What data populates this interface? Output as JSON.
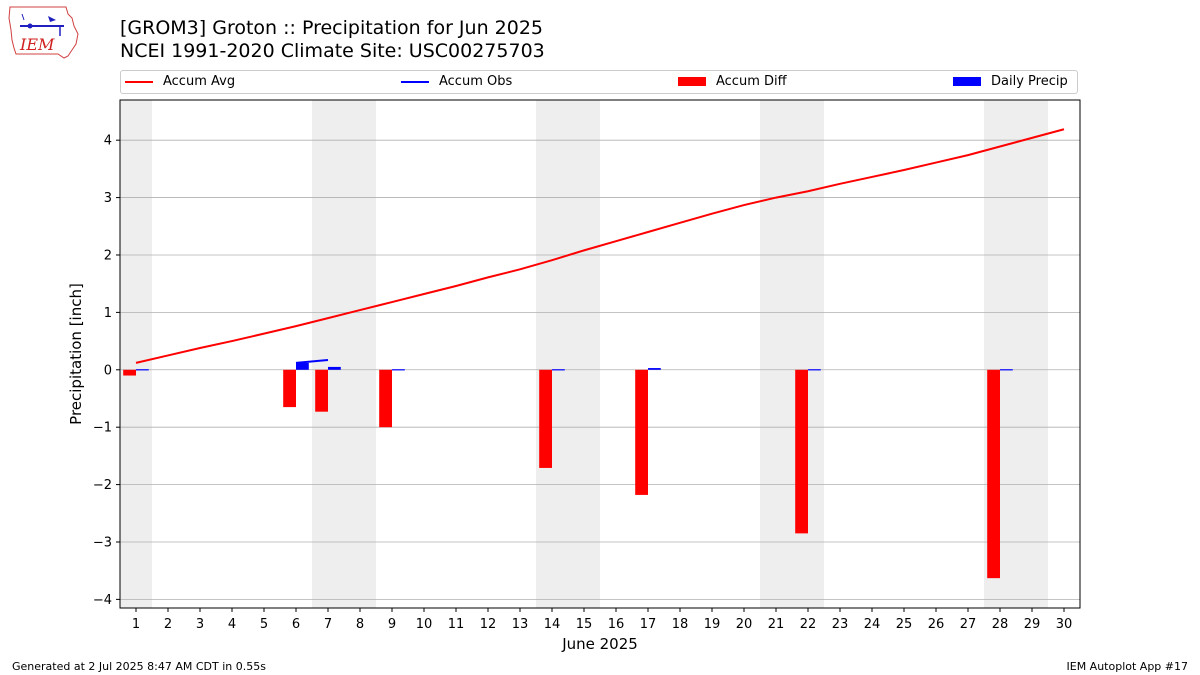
{
  "logo": {
    "text": "IEM"
  },
  "title_line1": "[GROM3] Groton :: Precipitation for Jun 2025",
  "title_line2": "NCEI 1991-2020 Climate Site: USC00275703",
  "footer": {
    "left": "Generated at 2 Jul 2025 8:47 AM CDT in 0.55s",
    "right": "IEM Autoplot App #17"
  },
  "colors": {
    "accum_avg": "#ff0000",
    "accum_obs": "#0000ff",
    "accum_diff": "#ff0000",
    "daily_precip": "#0000ff",
    "weekend_shade": "#eeeeee",
    "grid": "#b0b0b0"
  },
  "chart_data": {
    "type": "bar",
    "xlabel": "June 2025",
    "ylabel": "Precipitation [inch]",
    "xlim": [
      0.5,
      30.5
    ],
    "ylim": [
      -4.15,
      4.7
    ],
    "yticks": [
      -4,
      -3,
      -2,
      -1,
      0,
      1,
      2,
      3,
      4
    ],
    "ytick_labels": [
      "−4",
      "−3",
      "−2",
      "−1",
      "0",
      "1",
      "2",
      "3",
      "4"
    ],
    "xtick_labels": [
      "1",
      "2",
      "3",
      "4",
      "5",
      "6",
      "7",
      "8",
      "9",
      "10",
      "11",
      "12",
      "13",
      "14",
      "15",
      "16",
      "17",
      "18",
      "19",
      "20",
      "21",
      "22",
      "23",
      "24",
      "25",
      "26",
      "27",
      "28",
      "29",
      "30"
    ],
    "grid": "horizontal",
    "legend_position": "top",
    "shaded_days": [
      [
        0.5,
        1.5
      ],
      [
        6.5,
        8.5
      ],
      [
        13.5,
        15.5
      ],
      [
        20.5,
        22.5
      ],
      [
        27.5,
        29.5
      ]
    ],
    "days": [
      1,
      2,
      3,
      4,
      5,
      6,
      7,
      8,
      9,
      10,
      11,
      12,
      13,
      14,
      15,
      16,
      17,
      18,
      19,
      20,
      21,
      22,
      23,
      24,
      25,
      26,
      27,
      28,
      29,
      30
    ],
    "series": [
      {
        "name": "Accum Avg",
        "kind": "line",
        "values": [
          0.12,
          0.25,
          0.38,
          0.5,
          0.63,
          0.76,
          0.9,
          1.04,
          1.18,
          1.32,
          1.46,
          1.61,
          1.75,
          1.91,
          2.08,
          2.24,
          2.4,
          2.56,
          2.72,
          2.87,
          3.0,
          3.11,
          3.24,
          3.36,
          3.48,
          3.61,
          3.74,
          3.89,
          4.04,
          4.19
        ]
      },
      {
        "name": "Accum Obs",
        "kind": "line",
        "days": [
          6,
          7
        ],
        "values": [
          0.12,
          0.17
        ]
      },
      {
        "name": "Accum Diff",
        "kind": "bar",
        "days": [
          1,
          6,
          7,
          9,
          14,
          17,
          22,
          28
        ],
        "values": [
          -0.1,
          -0.65,
          -0.73,
          -1.0,
          -1.71,
          -2.18,
          -2.85,
          -3.63
        ]
      },
      {
        "name": "Daily Precip",
        "kind": "bar",
        "days": [
          1,
          6,
          7,
          9,
          14,
          17,
          22,
          28
        ],
        "values": [
          0.01,
          0.12,
          0.05,
          0.01,
          0.01,
          0.03,
          0.01,
          0.01
        ]
      }
    ]
  }
}
